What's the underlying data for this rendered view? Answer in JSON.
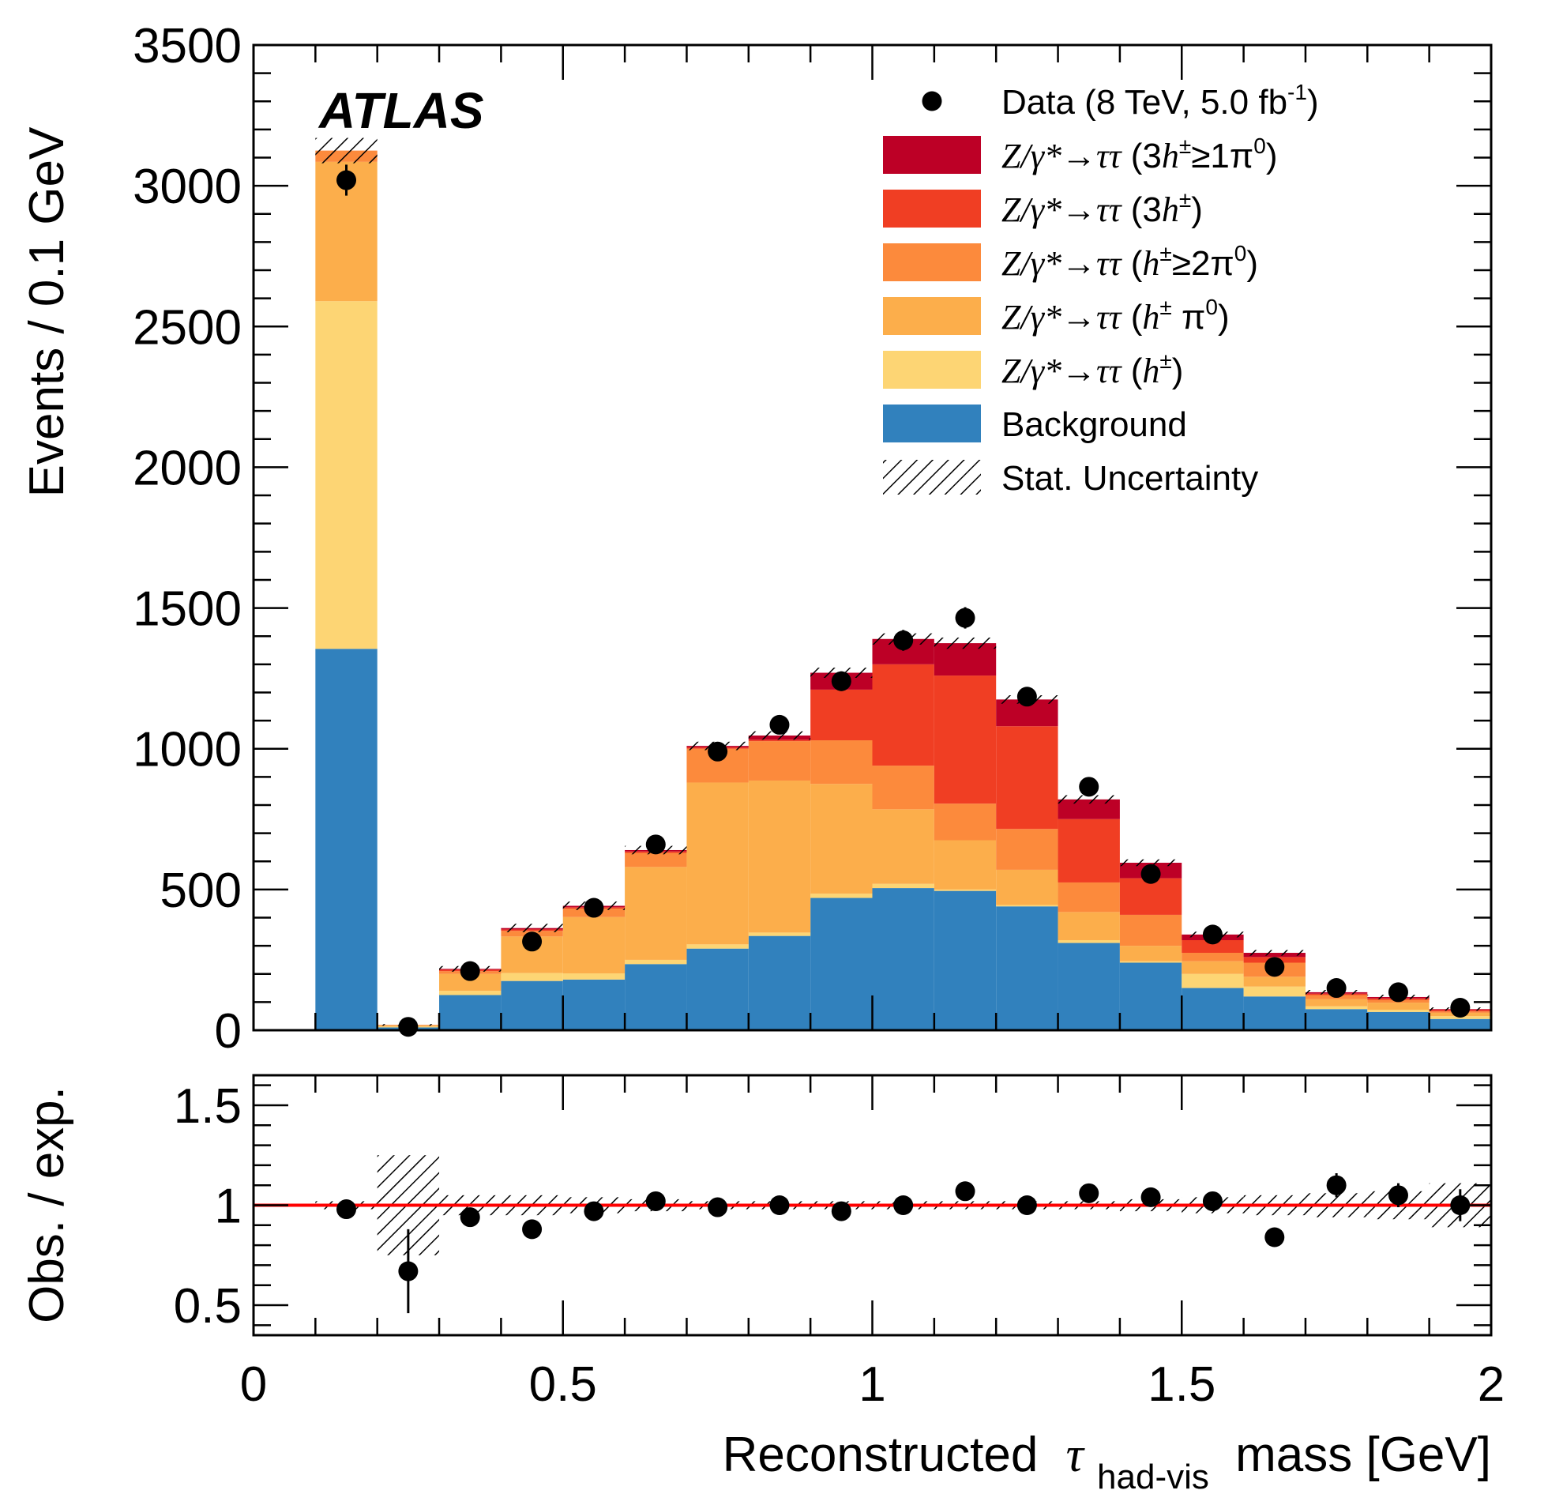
{
  "chart_data": [
    {
      "type": "bar",
      "stacked": true,
      "bin_edges": [
        0.1,
        0.2,
        0.3,
        0.4,
        0.5,
        0.6,
        0.7,
        0.8,
        0.9,
        1.0,
        1.1,
        1.2,
        1.3,
        1.4,
        1.5,
        1.6,
        1.7,
        1.8,
        1.9,
        2.0
      ],
      "xlim": [
        0,
        2
      ],
      "ylim": [
        0,
        3500
      ],
      "ylabel": "Events / 0.1 GeV",
      "experiment_label": "ATLAS",
      "y_ticks": [
        "0",
        "500",
        "1000",
        "1500",
        "2000",
        "2500",
        "3000",
        "3500"
      ],
      "series": [
        {
          "name": "Background",
          "color": "#3181bd",
          "values": [
            1355,
            10,
            125,
            175,
            180,
            235,
            290,
            335,
            470,
            505,
            495,
            440,
            310,
            240,
            150,
            120,
            75,
            65,
            40
          ]
        },
        {
          "name": "Z/γ*→ττ (h±)",
          "color": "#fdd574",
          "values": [
            1235,
            3,
            15,
            28,
            22,
            15,
            15,
            12,
            15,
            15,
            5,
            5,
            10,
            5,
            50,
            35,
            10,
            8,
            10
          ]
        },
        {
          "name": "Z/γ*→ττ (h± π0)",
          "color": "#fcae4b",
          "values": [
            495,
            4,
            60,
            130,
            200,
            330,
            575,
            540,
            390,
            265,
            175,
            125,
            100,
            55,
            45,
            35,
            25,
            25,
            12
          ]
        },
        {
          "name": "Z/γ*→ττ (h± ≥2π0)",
          "color": "#fc8a3c",
          "values": [
            40,
            2,
            10,
            20,
            30,
            50,
            120,
            140,
            155,
            155,
            130,
            145,
            105,
            110,
            30,
            50,
            15,
            10,
            5
          ]
        },
        {
          "name": "Z/γ*→ττ (3h±)",
          "color": "#f03e23",
          "values": [
            0,
            0,
            5,
            5,
            5,
            5,
            5,
            5,
            180,
            360,
            455,
            365,
            225,
            130,
            45,
            20,
            5,
            5,
            5
          ]
        },
        {
          "name": "Z/γ*→ττ (3h± ≥1π0)",
          "color": "#bd0026",
          "values": [
            0,
            0,
            3,
            5,
            5,
            5,
            5,
            15,
            60,
            90,
            115,
            95,
            70,
            55,
            20,
            15,
            5,
            5,
            3
          ]
        }
      ],
      "stat_uncertainty": [
        45,
        3,
        10,
        15,
        15,
        15,
        15,
        15,
        18,
        20,
        20,
        15,
        15,
        12,
        10,
        10,
        8,
        8,
        6
      ],
      "data": {
        "name": "Data (8 TeV, 5.0 fb-1)",
        "x": [
          0.15,
          0.25,
          0.35,
          0.45,
          0.55,
          0.65,
          0.75,
          0.85,
          0.95,
          1.05,
          1.15,
          1.25,
          1.35,
          1.45,
          1.55,
          1.65,
          1.75,
          1.85,
          1.95
        ],
        "y": [
          3020,
          12,
          210,
          315,
          435,
          660,
          990,
          1085,
          1240,
          1385,
          1465,
          1185,
          865,
          555,
          340,
          225,
          150,
          135,
          80
        ],
        "err": [
          55,
          4,
          15,
          18,
          21,
          26,
          31,
          33,
          35,
          37,
          38,
          34,
          29,
          24,
          18,
          15,
          12,
          12,
          9
        ]
      },
      "legend": {
        "placement": "top-right",
        "entries": [
          {
            "key": "data",
            "pre": "Data (8 TeV, 5.0 fb",
            "sup": "-1",
            "post": ")"
          },
          {
            "key": "s5",
            "zg": "Z/γ*→ττ",
            "pre": " (3",
            "h": "h",
            "sup": "±",
            "post": "≥1π",
            "sup2": "0",
            "post2": ")"
          },
          {
            "key": "s4",
            "zg": "Z/γ*→ττ",
            "pre": " (3",
            "h": "h",
            "sup": "±",
            "post": ")",
            "sup2": "",
            "post2": ""
          },
          {
            "key": "s3",
            "zg": "Z/γ*→ττ",
            "pre": " (",
            "h": "h",
            "sup": "±",
            "post": "≥2π",
            "sup2": "0",
            "post2": ")"
          },
          {
            "key": "s2",
            "zg": "Z/γ*→ττ",
            "pre": " (",
            "h": "h",
            "sup": "±",
            "post": " π",
            "sup2": "0",
            "post2": ")"
          },
          {
            "key": "s1",
            "zg": "Z/γ*→ττ",
            "pre": " (",
            "h": "h",
            "sup": "±",
            "post": ")",
            "sup2": "",
            "post2": ""
          },
          {
            "key": "s0",
            "label": "Background"
          },
          {
            "key": "unc",
            "label": "Stat. Uncertainty"
          }
        ]
      }
    },
    {
      "type": "scatter",
      "ylabel": "Obs. / exp.",
      "xlabel_main": "Reconstructed",
      "xlabel_symbol": "τ",
      "xlabel_sub": "had-vis",
      "xlabel_tail": "mass [GeV]",
      "xlim": [
        0,
        2
      ],
      "ylim": [
        0.35,
        1.65
      ],
      "reference_line": 1,
      "reference_color": "#ff0000",
      "x_ticks": [
        "0",
        "0.5",
        "1",
        "1.5",
        "2"
      ],
      "y_ticks": [
        "0.5",
        "1",
        "1.5"
      ],
      "x": [
        0.15,
        0.25,
        0.35,
        0.45,
        0.55,
        0.65,
        0.75,
        0.85,
        0.95,
        1.05,
        1.15,
        1.25,
        1.35,
        1.45,
        1.55,
        1.65,
        1.75,
        1.85,
        1.95
      ],
      "y": [
        0.98,
        0.67,
        0.94,
        0.88,
        0.97,
        1.02,
        0.99,
        1.0,
        0.97,
        1.0,
        1.07,
        1.0,
        1.06,
        1.04,
        1.02,
        0.84,
        1.1,
        1.05,
        1.0
      ],
      "err": [
        0.02,
        0.21,
        0.03,
        0.03,
        0.03,
        0.03,
        0.02,
        0.02,
        0.02,
        0.02,
        0.02,
        0.02,
        0.03,
        0.04,
        0.04,
        0.04,
        0.06,
        0.06,
        0.08
      ],
      "stat_band": [
        0.02,
        0.25,
        0.05,
        0.05,
        0.04,
        0.03,
        0.02,
        0.02,
        0.02,
        0.02,
        0.02,
        0.02,
        0.02,
        0.03,
        0.04,
        0.05,
        0.06,
        0.07,
        0.11
      ]
    }
  ]
}
